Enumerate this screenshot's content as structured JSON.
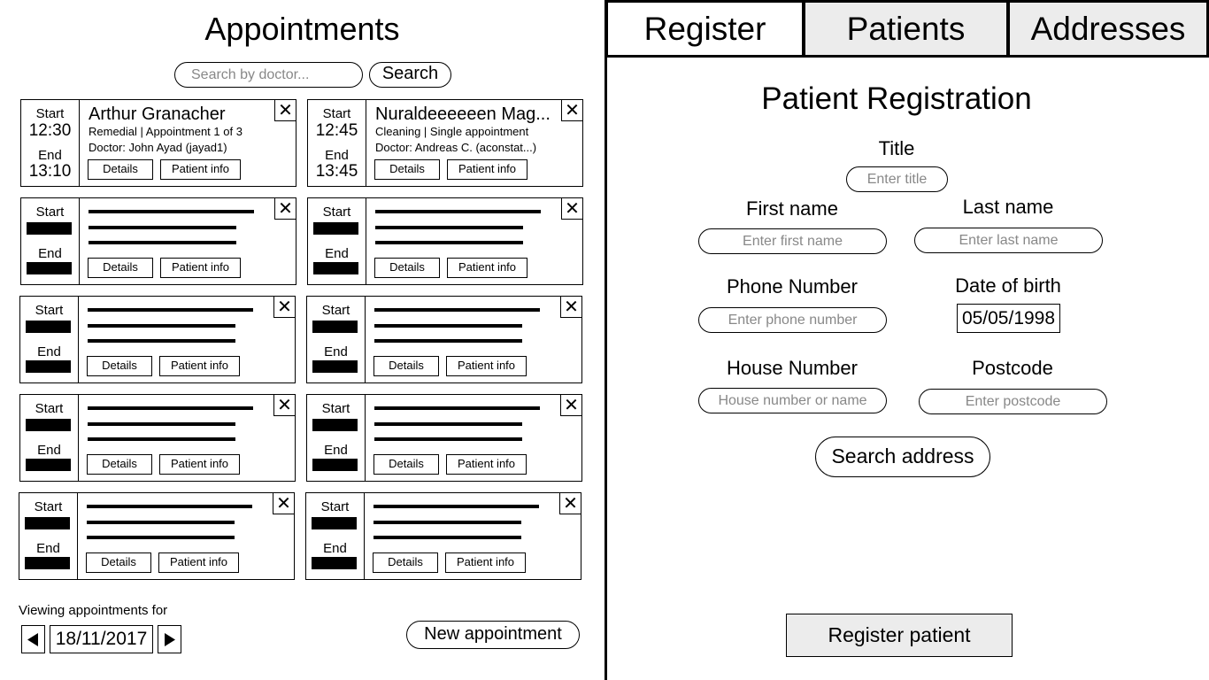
{
  "appointments": {
    "title": "Appointments",
    "search": {
      "placeholder": "Search by doctor...",
      "value": "",
      "button_label": "Search"
    },
    "labels": {
      "start": "Start",
      "end": "End",
      "details": "Details",
      "patient_info": "Patient info",
      "close_icon": "close-icon"
    },
    "cards": [
      {
        "start": "12:30",
        "end": "13:10",
        "patient": "Arthur Granacher",
        "type_line": "Remedial | Appointment 1 of 3",
        "doctor_line": "Doctor: John Ayad (jayad1)"
      },
      {
        "start": "12:45",
        "end": "13:45",
        "patient": "Nuraldeeeeeen Mag...",
        "type_line": "Cleaning | Single appointment",
        "doctor_line": "Doctor: Andreas C. (aconstat...)"
      }
    ],
    "viewing_label": "Viewing appointments for",
    "date": "18/11/2017",
    "new_appointment_label": "New appointment"
  },
  "tabs": [
    {
      "label": "Register",
      "active": true
    },
    {
      "label": "Patients",
      "active": false
    },
    {
      "label": "Addresses",
      "active": false
    }
  ],
  "registration": {
    "title": "Patient Registration",
    "title_field": {
      "label": "Title",
      "placeholder": "Enter title"
    },
    "first_name": {
      "label": "First name",
      "placeholder": "Enter first name"
    },
    "last_name": {
      "label": "Last name",
      "placeholder": "Enter last name"
    },
    "phone": {
      "label": "Phone Number",
      "placeholder": "Enter phone number"
    },
    "dob": {
      "label": "Date of birth",
      "value": "05/05/1998"
    },
    "house": {
      "label": "House Number",
      "placeholder": "House number or name"
    },
    "postcode": {
      "label": "Postcode",
      "placeholder": "Enter postcode"
    },
    "search_address_label": "Search address",
    "register_label": "Register patient"
  },
  "colors": {
    "inactive_tab": "#ececec",
    "placeholder": "#888888",
    "border": "#000000"
  }
}
